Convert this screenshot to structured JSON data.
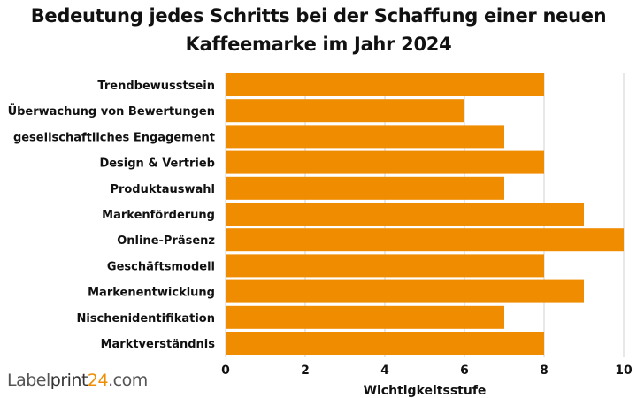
{
  "chart_data": {
    "type": "bar",
    "orientation": "horizontal",
    "title": "Bedeutung jedes Schritts bei der Schaffung einer neuen Kaffeemarke im Jahr 2024",
    "title_lines": [
      "Bedeutung jedes Schritts bei der Schaffung einer neuen",
      "Kaffeemarke im Jahr 2024"
    ],
    "categories": [
      "Trendbewusstsein",
      "Überwachung von Bewertungen",
      "gesellschaftliches Engagement",
      "Design & Vertrieb",
      "Produktauswahl",
      "Markenförderung",
      "Online-Präsenz",
      "Geschäftsmodell",
      "Markenentwicklung",
      "Nischenidentifikation",
      "Marktverständnis"
    ],
    "values": [
      8,
      6,
      7,
      8,
      7,
      9,
      10,
      8,
      9,
      7,
      8
    ],
    "xlabel": "Wichtigkeitsstufe",
    "ylabel": "",
    "xlim": [
      0,
      10
    ],
    "xticks": [
      0,
      2,
      4,
      6,
      8,
      10
    ],
    "grid": true,
    "bar_color": "#f08c00"
  },
  "logo": {
    "part1": "Label",
    "part2": "print",
    "part3": "24",
    "part4": ".com"
  }
}
